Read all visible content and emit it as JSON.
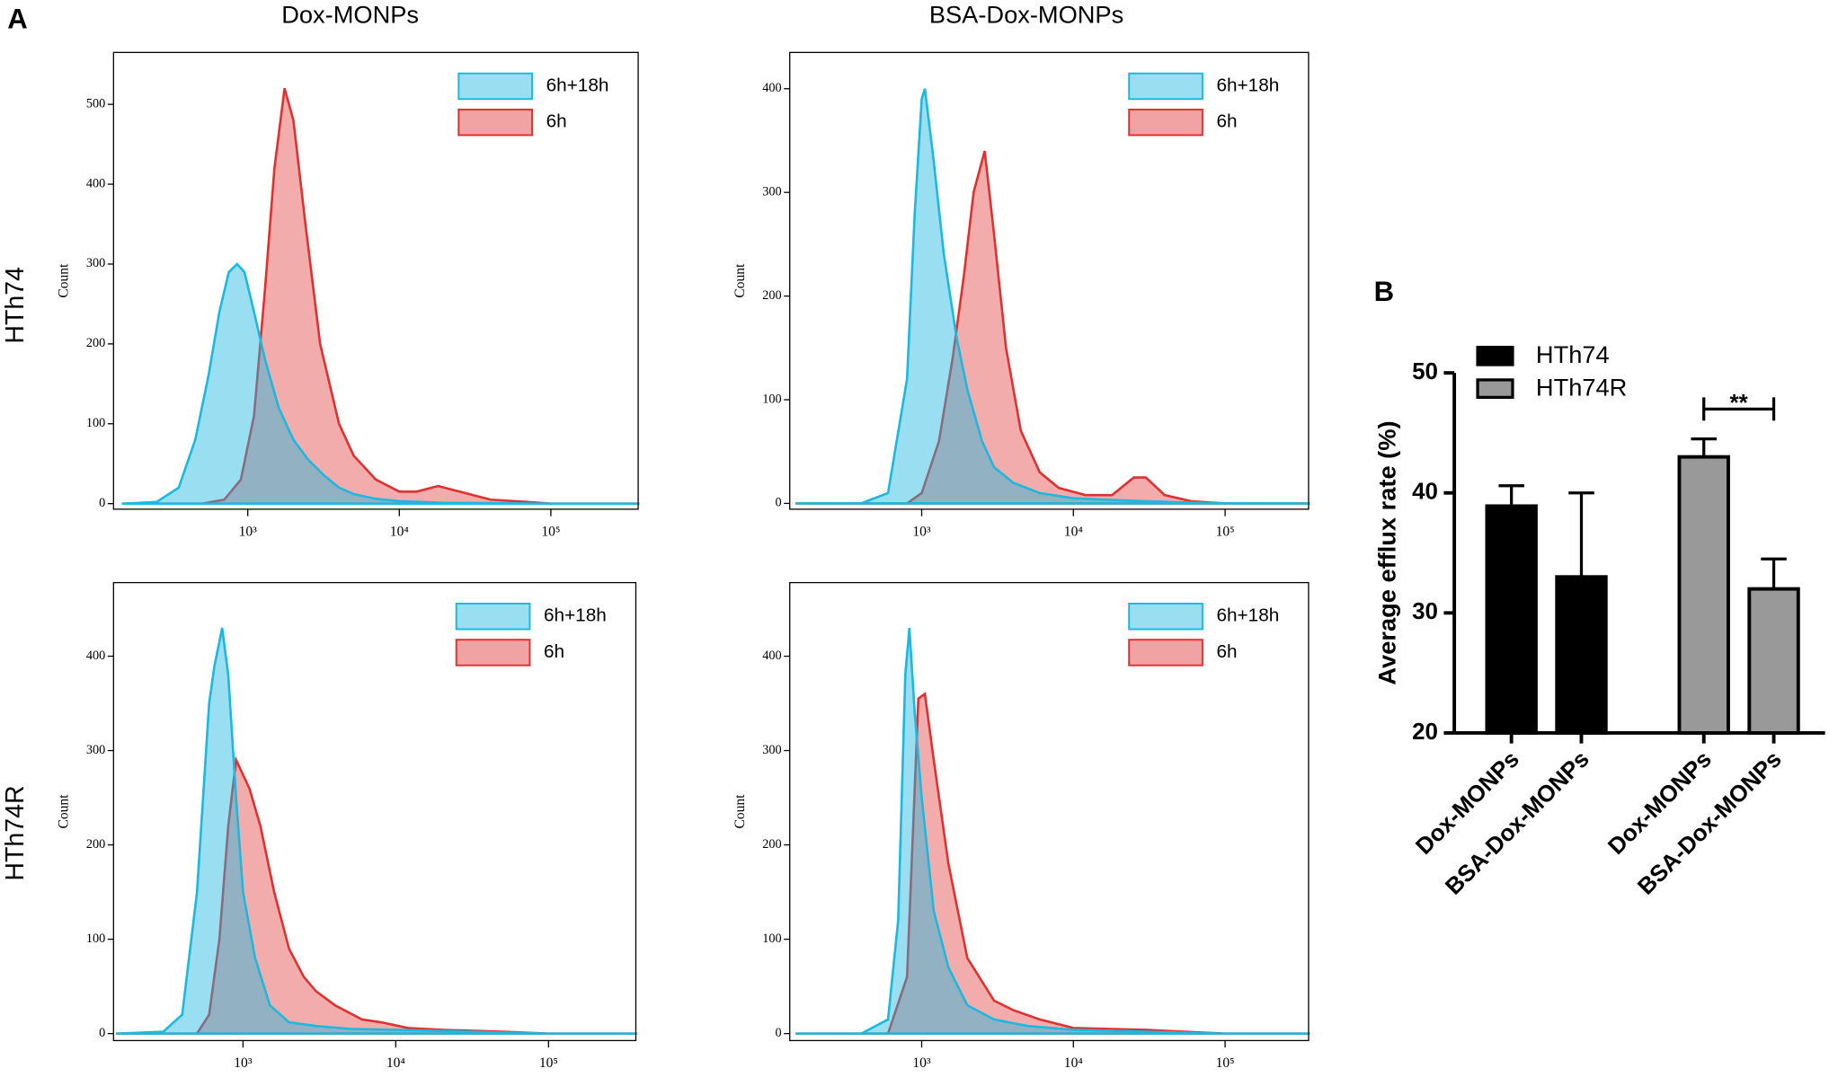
{
  "figure": {
    "panel_a": "A",
    "panel_b": "B",
    "columns": [
      "Dox-MONPs",
      "BSA-Dox-MONPs"
    ],
    "rows": [
      "HTh74",
      "HTh74R"
    ]
  },
  "chart_data": [
    {
      "type": "area",
      "ylabel": "Count",
      "xscale": "log",
      "xlim": [
        130,
        377000
      ],
      "ylim": [
        -7,
        565
      ],
      "xticks": [
        {
          "value": 1000,
          "label": "10³"
        },
        {
          "value": 10000,
          "label": "10⁴"
        },
        {
          "value": 100000,
          "label": "10⁵"
        }
      ],
      "yticks": [
        0,
        100,
        200,
        300,
        400,
        500
      ],
      "series": [
        {
          "name": "6h+18h",
          "color": "#1cb8e0",
          "x": [
            150,
            250,
            350,
            450,
            550,
            650,
            750,
            850,
            950,
            1100,
            1300,
            1600,
            2000,
            2500,
            3200,
            4000,
            5000,
            7000,
            10000,
            20000,
            100000,
            377000
          ],
          "values": [
            0,
            2,
            20,
            80,
            160,
            240,
            290,
            300,
            290,
            240,
            180,
            120,
            80,
            55,
            35,
            20,
            12,
            6,
            3,
            1,
            0,
            0
          ]
        },
        {
          "name": "6h",
          "color": "#e03030",
          "x": [
            150,
            500,
            700,
            900,
            1100,
            1300,
            1500,
            1750,
            2000,
            2400,
            3000,
            4000,
            5000,
            7000,
            10000,
            13000,
            18000,
            25000,
            40000,
            70000,
            100000,
            377000
          ],
          "values": [
            0,
            0,
            5,
            30,
            110,
            270,
            420,
            520,
            480,
            350,
            200,
            100,
            60,
            30,
            15,
            15,
            22,
            15,
            5,
            2,
            0,
            0
          ]
        }
      ]
    },
    {
      "type": "area",
      "ylabel": "Count",
      "xscale": "log",
      "xlim": [
        135,
        355000
      ],
      "ylim": [
        -5.6,
        435
      ],
      "xticks": [
        {
          "value": 1000,
          "label": "10³"
        },
        {
          "value": 10000,
          "label": "10⁴"
        },
        {
          "value": 100000,
          "label": "10⁵"
        }
      ],
      "yticks": [
        0,
        100,
        200,
        300,
        400
      ],
      "series": [
        {
          "name": "6h+18h",
          "color": "#1cb8e0",
          "x": [
            150,
            400,
            600,
            800,
            900,
            1000,
            1050,
            1200,
            1400,
            1700,
            2000,
            2500,
            3000,
            4000,
            6000,
            10000,
            20000,
            50000,
            100000,
            355000
          ],
          "values": [
            0,
            0,
            10,
            120,
            280,
            390,
            400,
            330,
            240,
            160,
            110,
            60,
            35,
            20,
            10,
            5,
            3,
            1,
            0,
            0
          ]
        },
        {
          "name": "6h",
          "color": "#e03030",
          "x": [
            150,
            800,
            1000,
            1300,
            1600,
            1900,
            2200,
            2600,
            3000,
            3600,
            4500,
            6000,
            8000,
            12000,
            18000,
            25000,
            30000,
            40000,
            60000,
            100000,
            355000
          ],
          "values": [
            0,
            0,
            10,
            60,
            140,
            220,
            300,
            340,
            260,
            150,
            70,
            30,
            15,
            8,
            8,
            25,
            25,
            8,
            2,
            0,
            0
          ]
        }
      ]
    },
    {
      "type": "area",
      "ylabel": "Count",
      "xscale": "log",
      "xlim": [
        142,
        373000
      ],
      "ylim": [
        -7.4,
        478
      ],
      "xticks": [
        {
          "value": 1000,
          "label": "10³"
        },
        {
          "value": 10000,
          "label": "10⁴"
        },
        {
          "value": 100000,
          "label": "10⁵"
        }
      ],
      "yticks": [
        0,
        100,
        200,
        300,
        400
      ],
      "series": [
        {
          "name": "6h+18h",
          "color": "#1cb8e0",
          "x": [
            150,
            300,
            400,
            500,
            600,
            650,
            730,
            800,
            900,
            1000,
            1200,
            1500,
            2000,
            3000,
            5000,
            10000,
            30000,
            100000,
            373000
          ],
          "values": [
            0,
            2,
            20,
            150,
            350,
            390,
            430,
            380,
            250,
            150,
            80,
            30,
            12,
            8,
            5,
            4,
            2,
            0,
            0
          ]
        },
        {
          "name": "6h",
          "color": "#e03030",
          "x": [
            150,
            500,
            600,
            700,
            800,
            900,
            1100,
            1300,
            1600,
            2000,
            2500,
            3000,
            4000,
            6000,
            8000,
            12000,
            20000,
            50000,
            100000,
            373000
          ],
          "values": [
            0,
            0,
            20,
            100,
            220,
            290,
            260,
            220,
            150,
            90,
            60,
            45,
            30,
            15,
            12,
            6,
            4,
            2,
            0,
            0
          ]
        }
      ]
    },
    {
      "type": "area",
      "ylabel": "Count",
      "xscale": "log",
      "xlim": [
        135,
        355000
      ],
      "ylim": [
        -7.4,
        478
      ],
      "xticks": [
        {
          "value": 1000,
          "label": "10³"
        },
        {
          "value": 10000,
          "label": "10⁴"
        },
        {
          "value": 100000,
          "label": "10⁵"
        }
      ],
      "yticks": [
        0,
        100,
        200,
        300,
        400
      ],
      "series": [
        {
          "name": "6h+18h",
          "color": "#1cb8e0",
          "x": [
            150,
            400,
            600,
            700,
            780,
            830,
            900,
            1000,
            1200,
            1500,
            2000,
            3000,
            5000,
            10000,
            30000,
            100000,
            355000
          ],
          "values": [
            0,
            0,
            15,
            120,
            380,
            430,
            340,
            250,
            130,
            70,
            30,
            15,
            8,
            4,
            2,
            0,
            0
          ]
        },
        {
          "name": "6h",
          "color": "#e03030",
          "x": [
            150,
            600,
            800,
            900,
            950,
            1050,
            1200,
            1500,
            2000,
            3000,
            4000,
            6000,
            10000,
            30000,
            40000,
            100000,
            355000
          ],
          "values": [
            0,
            0,
            60,
            260,
            355,
            360,
            290,
            180,
            80,
            35,
            25,
            15,
            6,
            4,
            3,
            0,
            0
          ]
        }
      ]
    },
    {
      "type": "bar",
      "ylabel": "Average efflux rate (%)",
      "categories": [
        "Dox-MONPs",
        "BSA-Dox-MONPs",
        "Dox-MONPs",
        "BSA-Dox-MONPs"
      ],
      "ylim": [
        20,
        50
      ],
      "yticks": [
        20,
        30,
        40,
        50
      ],
      "annotation": "**",
      "series": [
        {
          "name": "HTh74",
          "color": "#000000",
          "values": [
            38.9,
            33,
            null,
            null
          ],
          "errors": [
            1.7,
            7,
            null,
            null
          ]
        },
        {
          "name": "HTh74R",
          "color": "#999999",
          "values": [
            null,
            null,
            43,
            32
          ],
          "errors": [
            null,
            null,
            1.5,
            2.5
          ]
        }
      ]
    }
  ]
}
